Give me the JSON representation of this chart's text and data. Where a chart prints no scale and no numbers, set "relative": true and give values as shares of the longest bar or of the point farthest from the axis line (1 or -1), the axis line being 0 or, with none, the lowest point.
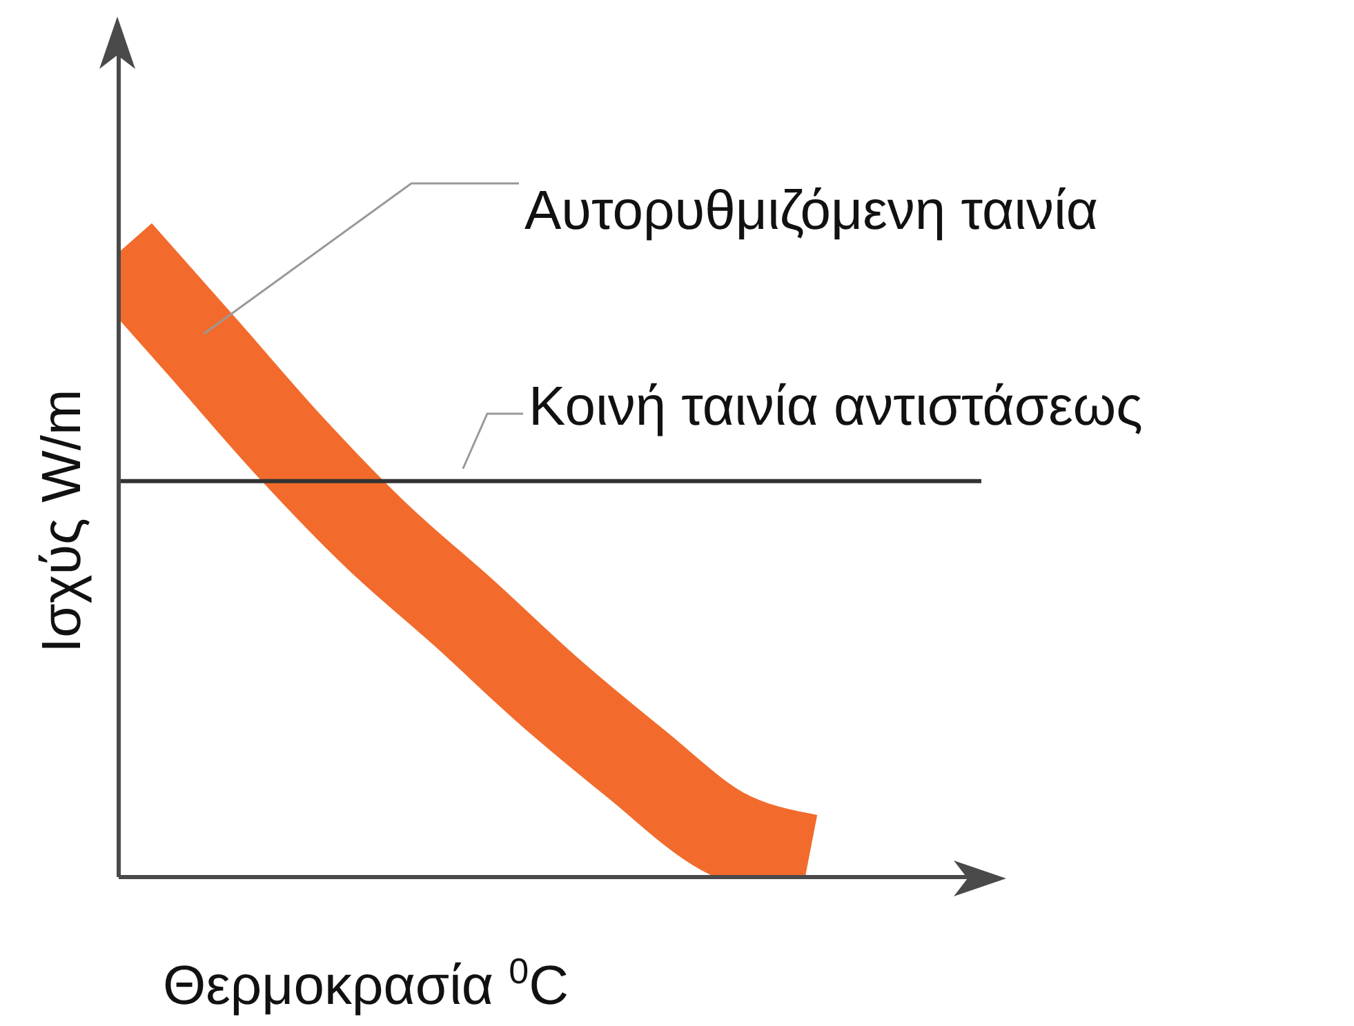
{
  "chart_data": {
    "type": "line",
    "relative": true,
    "xlabel": "Θερμοκρασία $^{0}$C",
    "ylabel": "Ισχύς W/m",
    "categories": [
      null,
      null,
      null,
      null,
      null,
      null,
      null,
      null,
      null,
      null,
      null
    ],
    "series": [
      {
        "name": "Αυτορυθμιζόμενη ταινία",
        "color": "#f26b2c",
        "values": [
          1,
          0.844,
          0.687,
          0.545,
          0.423,
          0.296,
          0.181,
          0.073,
          0.03,
          null,
          null
        ]
      },
      {
        "name": "Κοινή ταινία αντιστάσεως",
        "color": "#333333",
        "values": [
          0.634,
          0.634,
          0.634,
          0.634,
          0.634,
          0.634,
          0.634,
          0.634,
          0.634,
          0.634,
          0.634
        ]
      }
    ],
    "legend": false,
    "grid": false,
    "marker": "none",
    "line_style": "solid"
  }
}
